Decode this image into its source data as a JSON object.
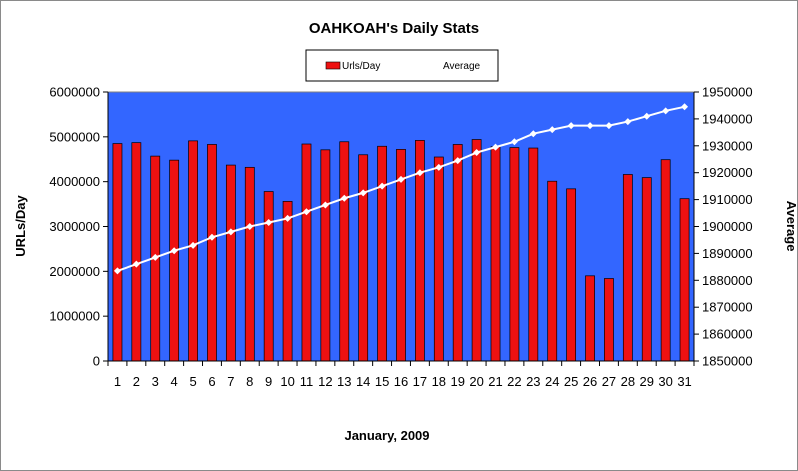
{
  "chart_data": {
    "type": "bar",
    "title": "OAHKOAH's Daily Stats",
    "xlabel": "January, 2009",
    "ylabel": "URLs/Day",
    "y2label": "Average",
    "categories": [
      "1",
      "2",
      "3",
      "4",
      "5",
      "6",
      "7",
      "8",
      "9",
      "10",
      "11",
      "12",
      "13",
      "14",
      "15",
      "16",
      "17",
      "18",
      "19",
      "20",
      "21",
      "22",
      "23",
      "24",
      "25",
      "26",
      "27",
      "28",
      "29",
      "30",
      "31"
    ],
    "ylim": [
      0,
      6000000
    ],
    "y_ticks": [
      "0",
      "1000000",
      "2000000",
      "3000000",
      "4000000",
      "5000000",
      "6000000"
    ],
    "y2lim": [
      1850000,
      1950000
    ],
    "y2_ticks": [
      "1850000",
      "1860000",
      "1870000",
      "1880000",
      "1890000",
      "1900000",
      "1910000",
      "1920000",
      "1930000",
      "1940000",
      "1950000"
    ],
    "legend_position": "top-center",
    "grid": false,
    "colors": {
      "plot_background": "#3366ff",
      "bar_fill": "#ee1111",
      "line": "#ffffff",
      "marker": "#ffffff"
    },
    "series": [
      {
        "name": "Urls/Day",
        "type": "bar",
        "axis": "left",
        "values": [
          4850000,
          4870000,
          4570000,
          4480000,
          4910000,
          4830000,
          4370000,
          4320000,
          3780000,
          3560000,
          4840000,
          4710000,
          4890000,
          4600000,
          4790000,
          4720000,
          4920000,
          4550000,
          4830000,
          4940000,
          4780000,
          4760000,
          4750000,
          4010000,
          3840000,
          1900000,
          1840000,
          4160000,
          4090000,
          4490000,
          3620000
        ]
      },
      {
        "name": "Average",
        "type": "line",
        "axis": "right",
        "values": [
          1883500,
          1886000,
          1888500,
          1891000,
          1893000,
          1896000,
          1898000,
          1900000,
          1901500,
          1903000,
          1905500,
          1908000,
          1910500,
          1912500,
          1915000,
          1917500,
          1920000,
          1922000,
          1924500,
          1927500,
          1929500,
          1931500,
          1934500,
          1936000,
          1937500,
          1937500,
          1937500,
          1939000,
          1941000,
          1943000,
          1944500
        ]
      }
    ]
  }
}
